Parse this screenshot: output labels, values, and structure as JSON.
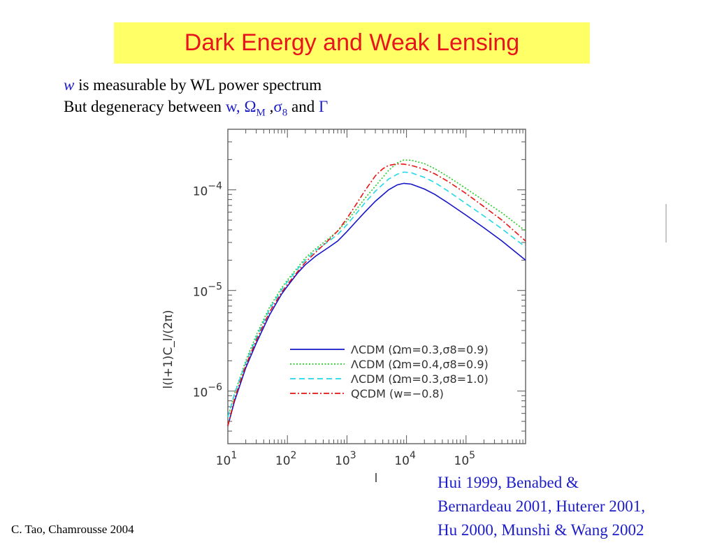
{
  "slide": {
    "title": "Dark Energy and Weak Lensing",
    "line1": {
      "w": "w",
      "rest": " is measurable by WL power spectrum"
    },
    "line2": {
      "prefix": "But  degeneracy between ",
      "w": "w,",
      "omega": " Ω",
      "omega_sub": "M",
      "comma": " ,",
      "sigma": "σ",
      "sigma_sub": "8",
      "and": " and ",
      "gamma": "Γ"
    },
    "footer_left": "C. Tao,  Chamrousse 2004",
    "references": [
      "Hui 1999, Benabed &",
      "Bernardeau 2001, Huterer 2001,",
      "Hu 2000, Munshi & Wang 2002"
    ]
  },
  "chart_data": {
    "type": "line",
    "xscale": "log",
    "yscale": "log",
    "xlim": [
      10,
      1000000
    ],
    "ylim": [
      3e-07,
      0.0004
    ],
    "xlabel": "l",
    "ylabel": "l(l+1)C_l/(2π)",
    "xticks": [
      {
        "value": 10,
        "base": "10",
        "exp": "1"
      },
      {
        "value": 100,
        "base": "10",
        "exp": "2"
      },
      {
        "value": 1000,
        "base": "10",
        "exp": "3"
      },
      {
        "value": 10000,
        "base": "10",
        "exp": "4"
      },
      {
        "value": 100000,
        "base": "10",
        "exp": "5"
      }
    ],
    "yticks": [
      {
        "value": 1e-06,
        "base": "10",
        "exp": "−6"
      },
      {
        "value": 1e-05,
        "base": "10",
        "exp": "−5"
      },
      {
        "value": 0.0001,
        "base": "10",
        "exp": "−4"
      }
    ],
    "legend_position": "lower-right",
    "series": [
      {
        "name": "ΛCDM (Ωm=0.3,σ8=0.9)",
        "color": "#1414c8",
        "dash": "solid",
        "x": [
          10,
          13,
          20,
          30,
          50,
          80,
          100,
          150,
          200,
          300,
          500,
          700,
          1000,
          1500,
          2000,
          3000,
          5000,
          7000,
          9000,
          12000,
          20000,
          30000,
          50000,
          100000,
          200000,
          400000,
          1000000
        ],
        "y": [
          4.5e-07,
          8e-07,
          1.7e-06,
          3e-06,
          5.7e-06,
          9.2e-06,
          1.1e-05,
          1.5e-05,
          1.8e-05,
          2.2e-05,
          2.7e-05,
          3.1e-05,
          3.85e-05,
          5e-05,
          6e-05,
          7.7e-05,
          0.0001,
          0.000112,
          0.000116,
          0.000114,
          0.000102,
          9e-05,
          7.4e-05,
          5.6e-05,
          4.2e-05,
          3.1e-05,
          2e-05
        ]
      },
      {
        "name": "ΛCDM (Ωm=0.4,σ8=0.9)",
        "color": "#22cc22",
        "dash": "dotted",
        "x": [
          10,
          13,
          20,
          30,
          50,
          80,
          100,
          150,
          200,
          300,
          500,
          700,
          1000,
          1500,
          2000,
          3000,
          5000,
          7000,
          9000,
          12000,
          20000,
          30000,
          50000,
          100000,
          200000,
          400000,
          1000000
        ],
        "y": [
          5.5e-07,
          9.5e-07,
          2e-06,
          3.6e-06,
          6.8e-06,
          1.06e-05,
          1.27e-05,
          1.7e-05,
          2.1e-05,
          2.6e-05,
          3.3e-05,
          3.9e-05,
          4.9e-05,
          6.6e-05,
          8.2e-05,
          0.000109,
          0.000156,
          0.000185,
          0.000198,
          0.000197,
          0.000182,
          0.000162,
          0.000135,
          0.000103,
          7.8e-05,
          5.9e-05,
          3.9e-05
        ]
      },
      {
        "name": "ΛCDM (Ωm=0.3,σ8=1.0)",
        "color": "#22d8e8",
        "dash": "dashed",
        "x": [
          10,
          13,
          20,
          30,
          50,
          80,
          100,
          150,
          200,
          300,
          500,
          700,
          1000,
          1500,
          2000,
          3000,
          5000,
          7000,
          9000,
          12000,
          20000,
          30000,
          50000,
          100000,
          200000,
          400000,
          1000000
        ],
        "y": [
          5.5e-07,
          9.5e-07,
          1.9e-06,
          3.4e-06,
          6.5e-06,
          1.02e-05,
          1.22e-05,
          1.65e-05,
          2e-05,
          2.5e-05,
          3.1e-05,
          3.6e-05,
          4.5e-05,
          6e-05,
          7.4e-05,
          9.7e-05,
          0.000128,
          0.000143,
          0.00015,
          0.000148,
          0.000133,
          0.000118,
          9.7e-05,
          7.3e-05,
          5.5e-05,
          4.1e-05,
          2.7e-05
        ]
      },
      {
        "name": "QCDM (w=−0.8)",
        "color": "#e81414",
        "dash": "dashdot",
        "x": [
          10,
          13,
          20,
          30,
          50,
          80,
          100,
          150,
          200,
          300,
          500,
          700,
          1000,
          1500,
          2000,
          3000,
          4000,
          5000,
          7000,
          9000,
          12000,
          20000,
          30000,
          50000,
          100000,
          200000,
          400000,
          1000000
        ],
        "y": [
          4.5e-07,
          8.5e-07,
          1.8e-06,
          3.2e-06,
          6.1e-06,
          9.6e-06,
          1.15e-05,
          1.55e-05,
          1.9e-05,
          2.4e-05,
          3.2e-05,
          3.9e-05,
          5.2e-05,
          7.5e-05,
          9.8e-05,
          0.000138,
          0.000162,
          0.000175,
          0.000181,
          0.00018,
          0.000175,
          0.00016,
          0.000144,
          0.000121,
          9.2e-05,
          6.8e-05,
          5e-05,
          3.1e-05
        ]
      }
    ]
  }
}
